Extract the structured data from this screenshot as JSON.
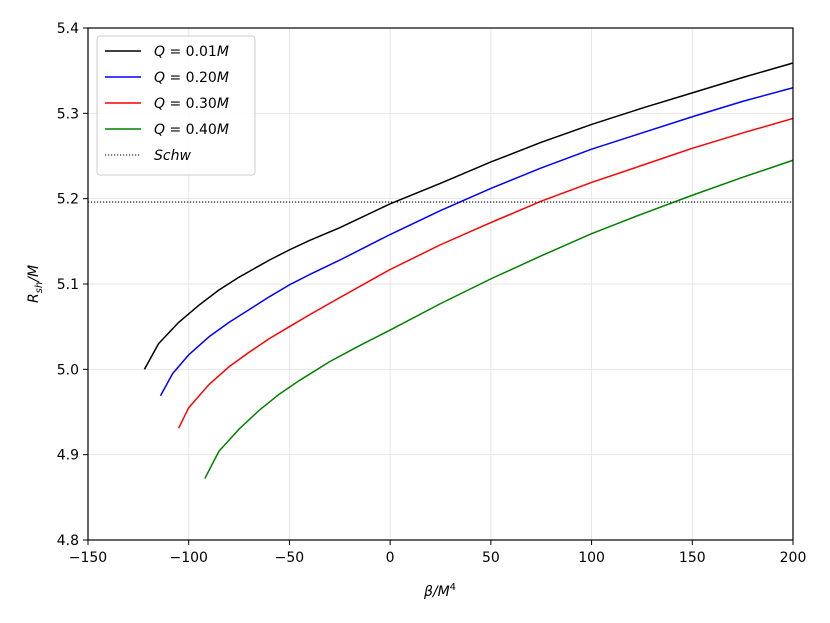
{
  "chart_data": {
    "type": "line",
    "title": "",
    "xlabel": "β/M⁴",
    "ylabel": "R_sh/M",
    "xlim": [
      -150,
      200
    ],
    "ylim": [
      4.8,
      5.4
    ],
    "xticks": [
      -150,
      -100,
      -50,
      0,
      50,
      100,
      150,
      200
    ],
    "xtick_labels": [
      "−150",
      "−100",
      "−50",
      "0",
      "50",
      "100",
      "150",
      "200"
    ],
    "yticks": [
      4.8,
      4.9,
      5.0,
      5.1,
      5.2,
      5.3,
      5.4
    ],
    "ytick_labels": [
      "4.8",
      "4.9",
      "5.0",
      "5.1",
      "5.2",
      "5.3",
      "5.4"
    ],
    "grid": true,
    "legend_position": "top-left",
    "series": [
      {
        "name": "Q = 0.01M",
        "color": "#000000",
        "style": "solid",
        "x": [
          -122,
          -115,
          -105,
          -95,
          -85,
          -75,
          -60,
          -50,
          -40,
          -25,
          0,
          25,
          50,
          75,
          100,
          125,
          150,
          175,
          200
        ],
        "y": [
          5.0,
          5.03,
          5.055,
          5.075,
          5.093,
          5.108,
          5.128,
          5.14,
          5.151,
          5.166,
          5.194,
          5.218,
          5.243,
          5.266,
          5.287,
          5.306,
          5.324,
          5.342,
          5.359
        ]
      },
      {
        "name": "Q = 0.20M",
        "color": "#0000ff",
        "style": "solid",
        "x": [
          -114,
          -108,
          -100,
          -90,
          -80,
          -70,
          -60,
          -50,
          -40,
          -25,
          0,
          25,
          50,
          75,
          100,
          125,
          150,
          175,
          200
        ],
        "y": [
          4.969,
          4.995,
          5.017,
          5.038,
          5.055,
          5.07,
          5.085,
          5.099,
          5.111,
          5.128,
          5.158,
          5.186,
          5.212,
          5.236,
          5.258,
          5.277,
          5.296,
          5.314,
          5.33
        ]
      },
      {
        "name": "Q = 0.30M",
        "color": "#ff0000",
        "style": "solid",
        "x": [
          -105,
          -100,
          -90,
          -80,
          -70,
          -60,
          -50,
          -40,
          -25,
          0,
          25,
          50,
          75,
          100,
          125,
          150,
          175,
          200
        ],
        "y": [
          4.931,
          4.955,
          4.982,
          5.003,
          5.02,
          5.036,
          5.05,
          5.064,
          5.084,
          5.117,
          5.146,
          5.172,
          5.197,
          5.219,
          5.239,
          5.259,
          5.277,
          5.294
        ]
      },
      {
        "name": "Q = 0.40M",
        "color": "#008000",
        "style": "solid",
        "x": [
          -92,
          -85,
          -75,
          -65,
          -55,
          -45,
          -30,
          -15,
          0,
          25,
          50,
          75,
          100,
          125,
          150,
          175,
          200
        ],
        "y": [
          4.872,
          4.904,
          4.93,
          4.952,
          4.971,
          4.987,
          5.009,
          5.028,
          5.046,
          5.077,
          5.106,
          5.133,
          5.159,
          5.182,
          5.204,
          5.225,
          5.245
        ]
      },
      {
        "name": "Schw",
        "color": "#000000",
        "style": "dotted",
        "x": [
          -150,
          200
        ],
        "y": [
          5.196,
          5.196
        ]
      }
    ]
  }
}
